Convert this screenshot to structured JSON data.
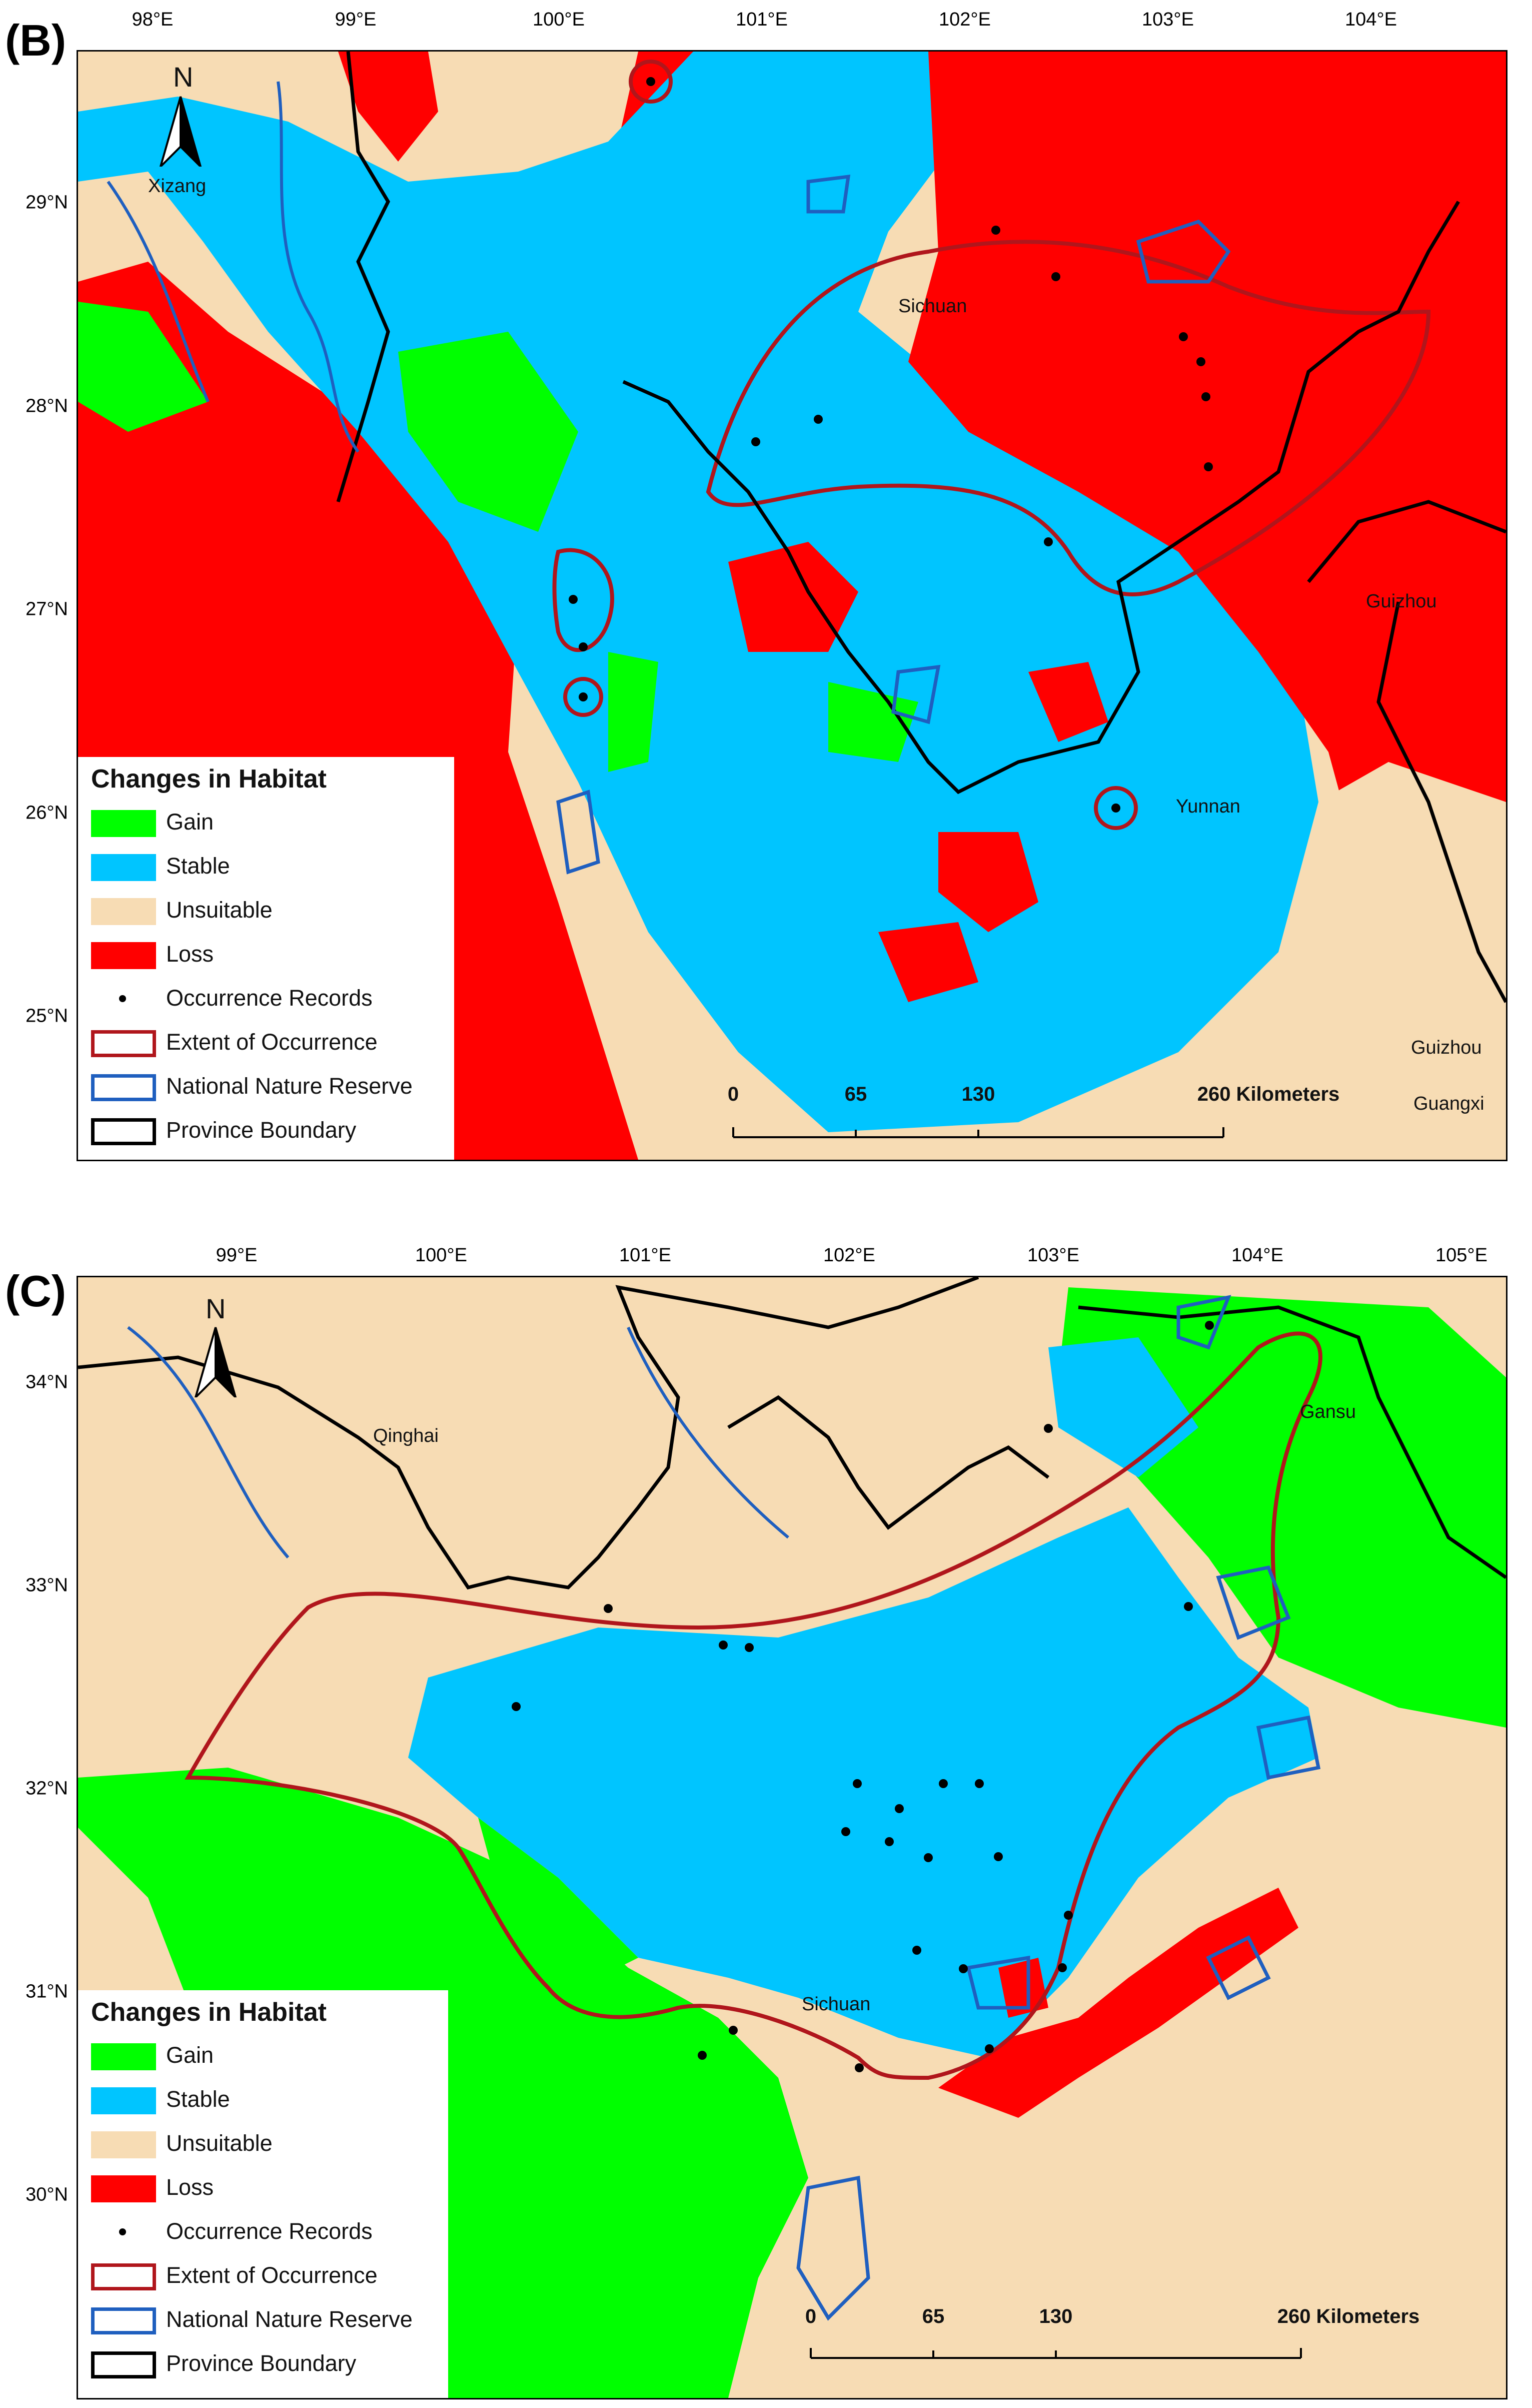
{
  "panels": [
    {
      "id": "B",
      "label": "(B)",
      "lon_ticks": [
        "98°E",
        "99°E",
        "100°E",
        "101°E",
        "102°E",
        "103°E",
        "104°E"
      ],
      "lat_ticks": [
        "29°N",
        "28°N",
        "27°N",
        "26°N",
        "25°N"
      ],
      "places": [
        "Xizang",
        "Sichuan",
        "Guizhou",
        "Yunnan",
        "Guizhou",
        "Guangxi"
      ],
      "scale_labels": [
        "0",
        "65",
        "130",
        "260 Kilometers"
      ],
      "north_label": "N"
    },
    {
      "id": "C",
      "label": "(C)",
      "lon_ticks": [
        "99°E",
        "100°E",
        "101°E",
        "102°E",
        "103°E",
        "104°E",
        "105°E"
      ],
      "lat_ticks": [
        "34°N",
        "33°N",
        "32°N",
        "31°N",
        "30°N"
      ],
      "places": [
        "Qinghai",
        "Gansu",
        "Sichuan"
      ],
      "scale_labels": [
        "0",
        "65",
        "130",
        "260 Kilometers"
      ],
      "north_label": "N"
    }
  ],
  "legend": {
    "title": "Changes in Habitat",
    "items": [
      {
        "label": "Gain",
        "color": "#00ff00",
        "kind": "fill"
      },
      {
        "label": "Stable",
        "color": "#00c5ff",
        "kind": "fill"
      },
      {
        "label": "Unsuitable",
        "color": "#f7dcb4",
        "kind": "fill"
      },
      {
        "label": "Loss",
        "color": "#ff0000",
        "kind": "fill"
      },
      {
        "label": "Occurrence Records",
        "color": "#000000",
        "kind": "dot"
      },
      {
        "label": "Extent of Occurrence",
        "color": "#b0161c",
        "kind": "outline"
      },
      {
        "label": "National Nature Reserve",
        "color": "#1f5fbf",
        "kind": "outline"
      },
      {
        "label": "Province Boundary",
        "color": "#000000",
        "kind": "outline"
      }
    ]
  },
  "colors": {
    "gain": "#00ff00",
    "stable": "#00c5ff",
    "unsuitable": "#f7dcb4",
    "loss": "#ff0000",
    "extent": "#b0161c",
    "reserve": "#1f5fbf",
    "boundary": "#000000"
  }
}
